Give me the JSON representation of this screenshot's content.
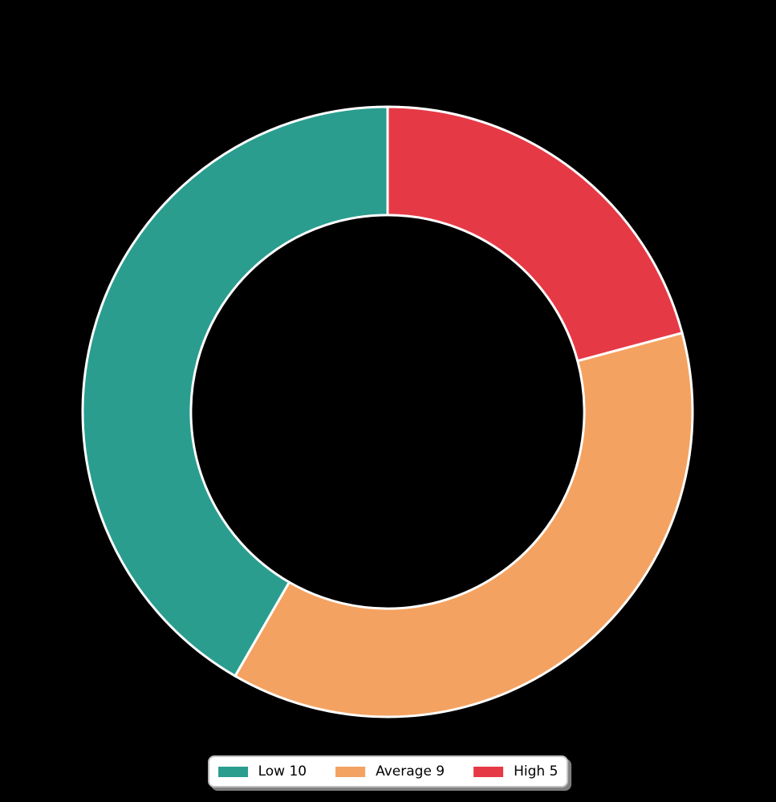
{
  "page": {
    "background_color": "#000000"
  },
  "chart_data": {
    "type": "pie",
    "subtype": "donut",
    "categories": [
      "Low",
      "Average",
      "High"
    ],
    "values": [
      10,
      9,
      5
    ],
    "total": 24,
    "legend_entries": [
      "Low 10",
      "Average 9",
      "High 5"
    ],
    "colors": [
      "#2a9d8f",
      "#f4a261",
      "#e63946"
    ],
    "edge_color": "#ffffff",
    "start_angle_deg": 90,
    "direction": "counterclockwise",
    "hole_ratio": 0.645,
    "legend_position": "bottom-center",
    "legend_background": "#ffffff",
    "legend_border_color": "#c0c0c0",
    "legend_text_color": "#000000"
  }
}
